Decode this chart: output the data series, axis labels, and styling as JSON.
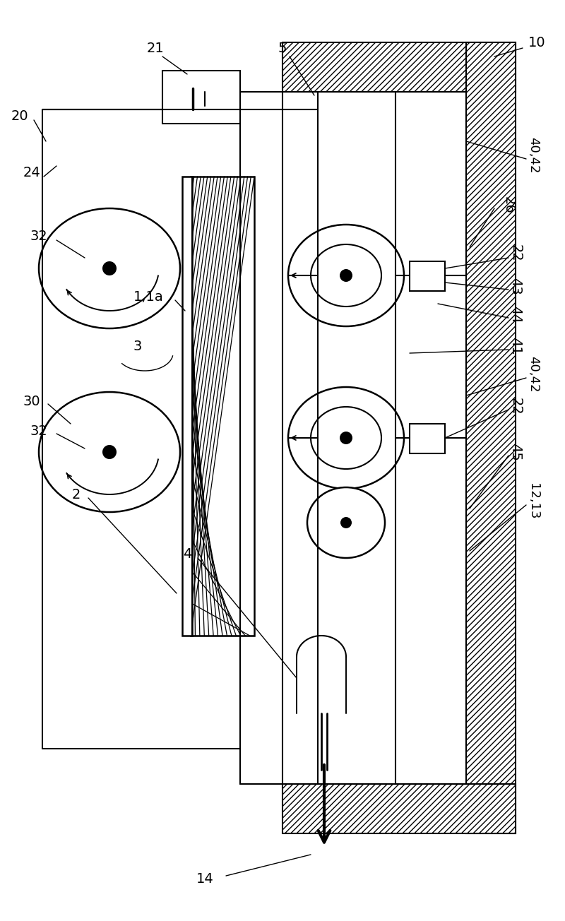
{
  "bg_color": "#ffffff",
  "lc": "#000000",
  "lw": 1.6,
  "fig_w": 8.0,
  "fig_h": 13.04,
  "dpi": 100
}
